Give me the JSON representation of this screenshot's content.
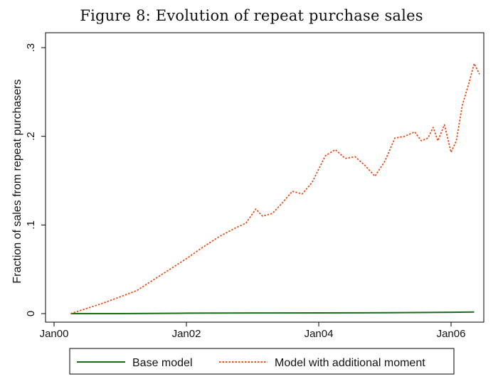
{
  "figure": {
    "title": "Figure 8: Evolution of repeat purchase sales"
  },
  "chart_data": {
    "type": "line",
    "ylabel": "Fraction of sales from repeat purchasers",
    "xlabel": "",
    "ylim": [
      0,
      0.3
    ],
    "yticks": [
      {
        "value": 0,
        "label": "0"
      },
      {
        "value": 0.1,
        "label": ".1"
      },
      {
        "value": 0.2,
        "label": ".2"
      },
      {
        "value": 0.3,
        "label": ".3"
      }
    ],
    "xlim": [
      2000.0,
      2006.5
    ],
    "xticks": [
      {
        "value": 2000.0,
        "label": "Jan00"
      },
      {
        "value": 2002.0,
        "label": "Jan02"
      },
      {
        "value": 2004.0,
        "label": "Jan04"
      },
      {
        "value": 2006.0,
        "label": "Jan06"
      }
    ],
    "grid": false,
    "legend_position": "bottom",
    "series": [
      {
        "name": "Base model",
        "style": "solid",
        "color": "#1a6b1a",
        "points": [
          [
            2000.25,
            0.0
          ],
          [
            2001.0,
            0.0
          ],
          [
            2002.0,
            0.0005
          ],
          [
            2003.0,
            0.0007
          ],
          [
            2004.0,
            0.0008
          ],
          [
            2005.0,
            0.001
          ],
          [
            2006.0,
            0.0015
          ],
          [
            2006.35,
            0.0018
          ]
        ]
      },
      {
        "name": "Model with additional moment",
        "style": "dotted",
        "color": "#e8501e",
        "points": [
          [
            2000.25,
            0.0
          ],
          [
            2000.5,
            0.006
          ],
          [
            2000.75,
            0.012
          ],
          [
            2001.0,
            0.019
          ],
          [
            2001.25,
            0.026
          ],
          [
            2001.5,
            0.038
          ],
          [
            2001.75,
            0.05
          ],
          [
            2002.0,
            0.062
          ],
          [
            2002.25,
            0.075
          ],
          [
            2002.5,
            0.087
          ],
          [
            2002.75,
            0.097
          ],
          [
            2002.9,
            0.102
          ],
          [
            2003.05,
            0.118
          ],
          [
            2003.15,
            0.11
          ],
          [
            2003.3,
            0.113
          ],
          [
            2003.45,
            0.125
          ],
          [
            2003.6,
            0.138
          ],
          [
            2003.75,
            0.135
          ],
          [
            2003.9,
            0.148
          ],
          [
            2004.1,
            0.178
          ],
          [
            2004.25,
            0.185
          ],
          [
            2004.4,
            0.175
          ],
          [
            2004.55,
            0.177
          ],
          [
            2004.7,
            0.167
          ],
          [
            2004.85,
            0.155
          ],
          [
            2005.0,
            0.172
          ],
          [
            2005.15,
            0.198
          ],
          [
            2005.3,
            0.2
          ],
          [
            2005.45,
            0.205
          ],
          [
            2005.55,
            0.195
          ],
          [
            2005.65,
            0.198
          ],
          [
            2005.73,
            0.21
          ],
          [
            2005.8,
            0.195
          ],
          [
            2005.9,
            0.213
          ],
          [
            2006.0,
            0.182
          ],
          [
            2006.08,
            0.195
          ],
          [
            2006.17,
            0.235
          ],
          [
            2006.27,
            0.26
          ],
          [
            2006.35,
            0.282
          ],
          [
            2006.43,
            0.27
          ]
        ]
      }
    ]
  }
}
